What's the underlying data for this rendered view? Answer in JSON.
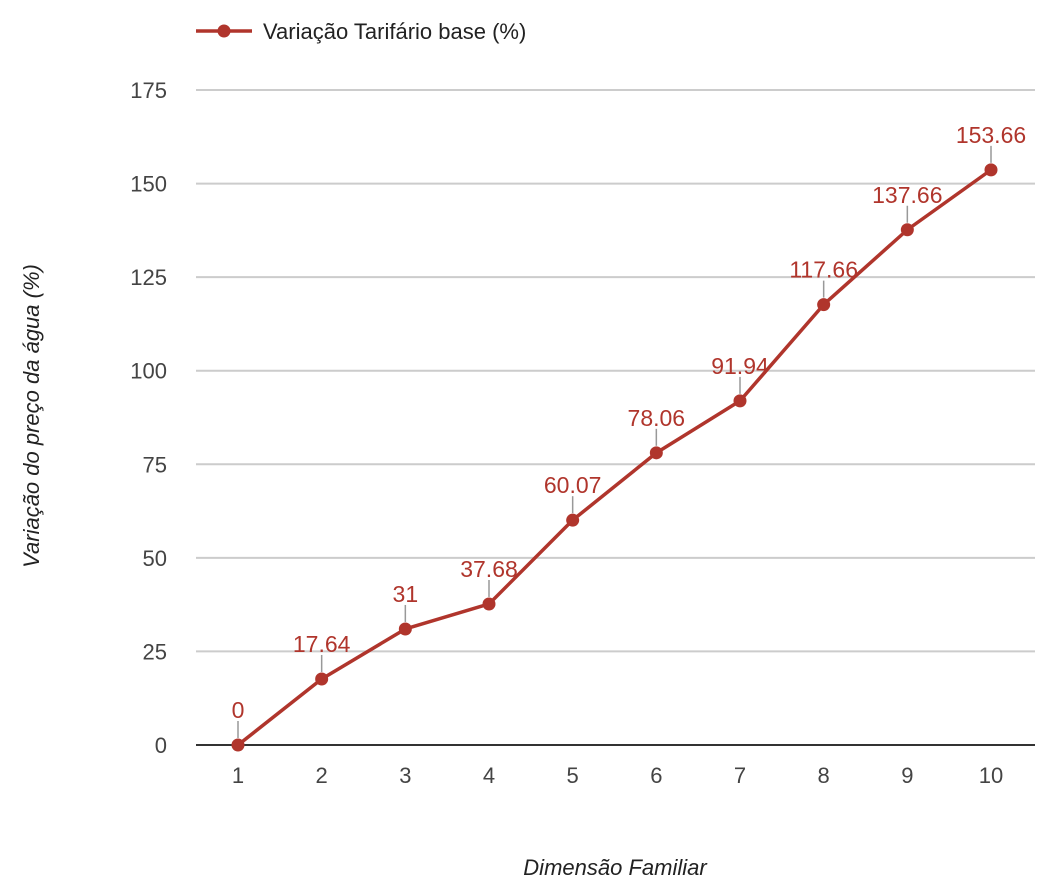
{
  "chart_data": {
    "type": "line",
    "title": "",
    "xlabel": "Dimensão Familiar",
    "ylabel": "Variação do preço da água (%)",
    "categories": [
      "1",
      "2",
      "3",
      "4",
      "5",
      "6",
      "7",
      "8",
      "9",
      "10"
    ],
    "series": [
      {
        "name": "Variação Tarifário base (%)",
        "values": [
          0,
          17.64,
          31,
          37.68,
          60.07,
          78.06,
          91.94,
          117.66,
          137.66,
          153.66
        ],
        "labels": [
          "0",
          "17.64",
          "31",
          "37.68",
          "60.07",
          "78.06",
          "91.94",
          "117.66",
          "137.66",
          "153.66"
        ]
      }
    ],
    "ylim": [
      0,
      175
    ],
    "yticks": [
      "0",
      "25",
      "50",
      "75",
      "100",
      "125",
      "150",
      "175"
    ],
    "grid": true,
    "legend_position": "top-left",
    "colors": {
      "series": "#b0352c",
      "label": "#b0352c"
    }
  }
}
